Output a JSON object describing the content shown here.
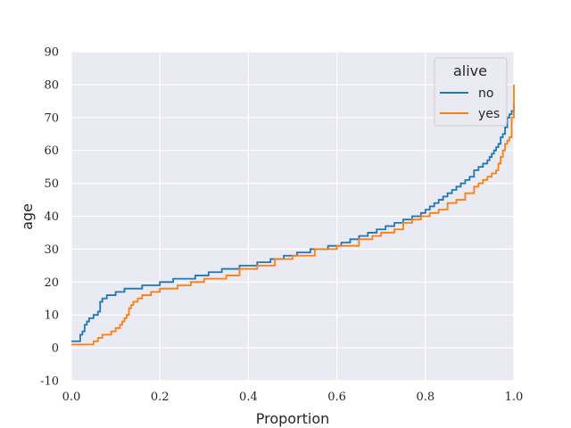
{
  "chart_data": {
    "type": "line",
    "xlabel": "Proportion",
    "ylabel": "age",
    "xlim": [
      0.0,
      1.0
    ],
    "ylim": [
      -10,
      90
    ],
    "xticks": [
      "0.0",
      "0.2",
      "0.4",
      "0.6",
      "0.8",
      "1.0"
    ],
    "xtick_values": [
      0.0,
      0.2,
      0.4,
      0.6,
      0.8,
      1.0
    ],
    "yticks": [
      "-10",
      "0",
      "10",
      "20",
      "30",
      "40",
      "50",
      "60",
      "70",
      "80",
      "90"
    ],
    "ytick_values": [
      -10,
      0,
      10,
      20,
      30,
      40,
      50,
      60,
      70,
      80,
      90
    ],
    "grid": true,
    "legend": {
      "title": "alive",
      "placement": "top-right"
    },
    "series": [
      {
        "name": "no",
        "color": "#1f77b4",
        "x": [
          0.0,
          0.01,
          0.02,
          0.025,
          0.03,
          0.035,
          0.04,
          0.05,
          0.06,
          0.065,
          0.07,
          0.08,
          0.1,
          0.12,
          0.16,
          0.2,
          0.23,
          0.28,
          0.31,
          0.34,
          0.38,
          0.42,
          0.45,
          0.48,
          0.51,
          0.54,
          0.58,
          0.61,
          0.63,
          0.65,
          0.67,
          0.69,
          0.71,
          0.73,
          0.75,
          0.77,
          0.79,
          0.8,
          0.81,
          0.82,
          0.83,
          0.84,
          0.85,
          0.86,
          0.87,
          0.88,
          0.89,
          0.9,
          0.91,
          0.92,
          0.93,
          0.94,
          0.945,
          0.95,
          0.955,
          0.96,
          0.965,
          0.97,
          0.975,
          0.98,
          0.985,
          0.99,
          0.995,
          1.0
        ],
        "y": [
          2,
          2,
          4,
          5,
          7,
          8,
          9,
          10,
          11,
          14,
          15,
          16,
          17,
          18,
          19,
          20,
          21,
          22,
          23,
          24,
          25,
          26,
          27,
          28,
          29,
          30,
          31,
          32,
          33,
          34,
          35,
          36,
          37,
          38,
          39,
          40,
          41,
          42,
          43,
          44,
          45,
          46,
          47,
          48,
          49,
          50,
          51,
          52,
          54,
          55,
          56,
          57,
          58,
          59,
          60,
          61,
          62,
          64,
          65,
          67,
          70,
          71,
          72,
          74
        ]
      },
      {
        "name": "yes",
        "color": "#ff7f0e",
        "x": [
          0.0,
          0.04,
          0.05,
          0.06,
          0.07,
          0.09,
          0.1,
          0.11,
          0.115,
          0.12,
          0.125,
          0.13,
          0.135,
          0.14,
          0.15,
          0.16,
          0.18,
          0.2,
          0.24,
          0.27,
          0.3,
          0.35,
          0.38,
          0.42,
          0.46,
          0.5,
          0.55,
          0.6,
          0.65,
          0.68,
          0.7,
          0.73,
          0.75,
          0.77,
          0.79,
          0.81,
          0.83,
          0.85,
          0.87,
          0.89,
          0.91,
          0.92,
          0.93,
          0.94,
          0.95,
          0.96,
          0.965,
          0.97,
          0.975,
          0.98,
          0.985,
          0.99,
          0.995,
          1.0
        ],
        "y": [
          1,
          1,
          2,
          3,
          4,
          5,
          6,
          7,
          8,
          9,
          10,
          12,
          13,
          14,
          15,
          16,
          17,
          18,
          19,
          20,
          21,
          22,
          24,
          25,
          27,
          28,
          30,
          31,
          33,
          34,
          35,
          36,
          38,
          39,
          40,
          41,
          42,
          44,
          45,
          47,
          49,
          50,
          51,
          52,
          53,
          54,
          56,
          58,
          60,
          62,
          63,
          64,
          70,
          80
        ]
      }
    ]
  }
}
